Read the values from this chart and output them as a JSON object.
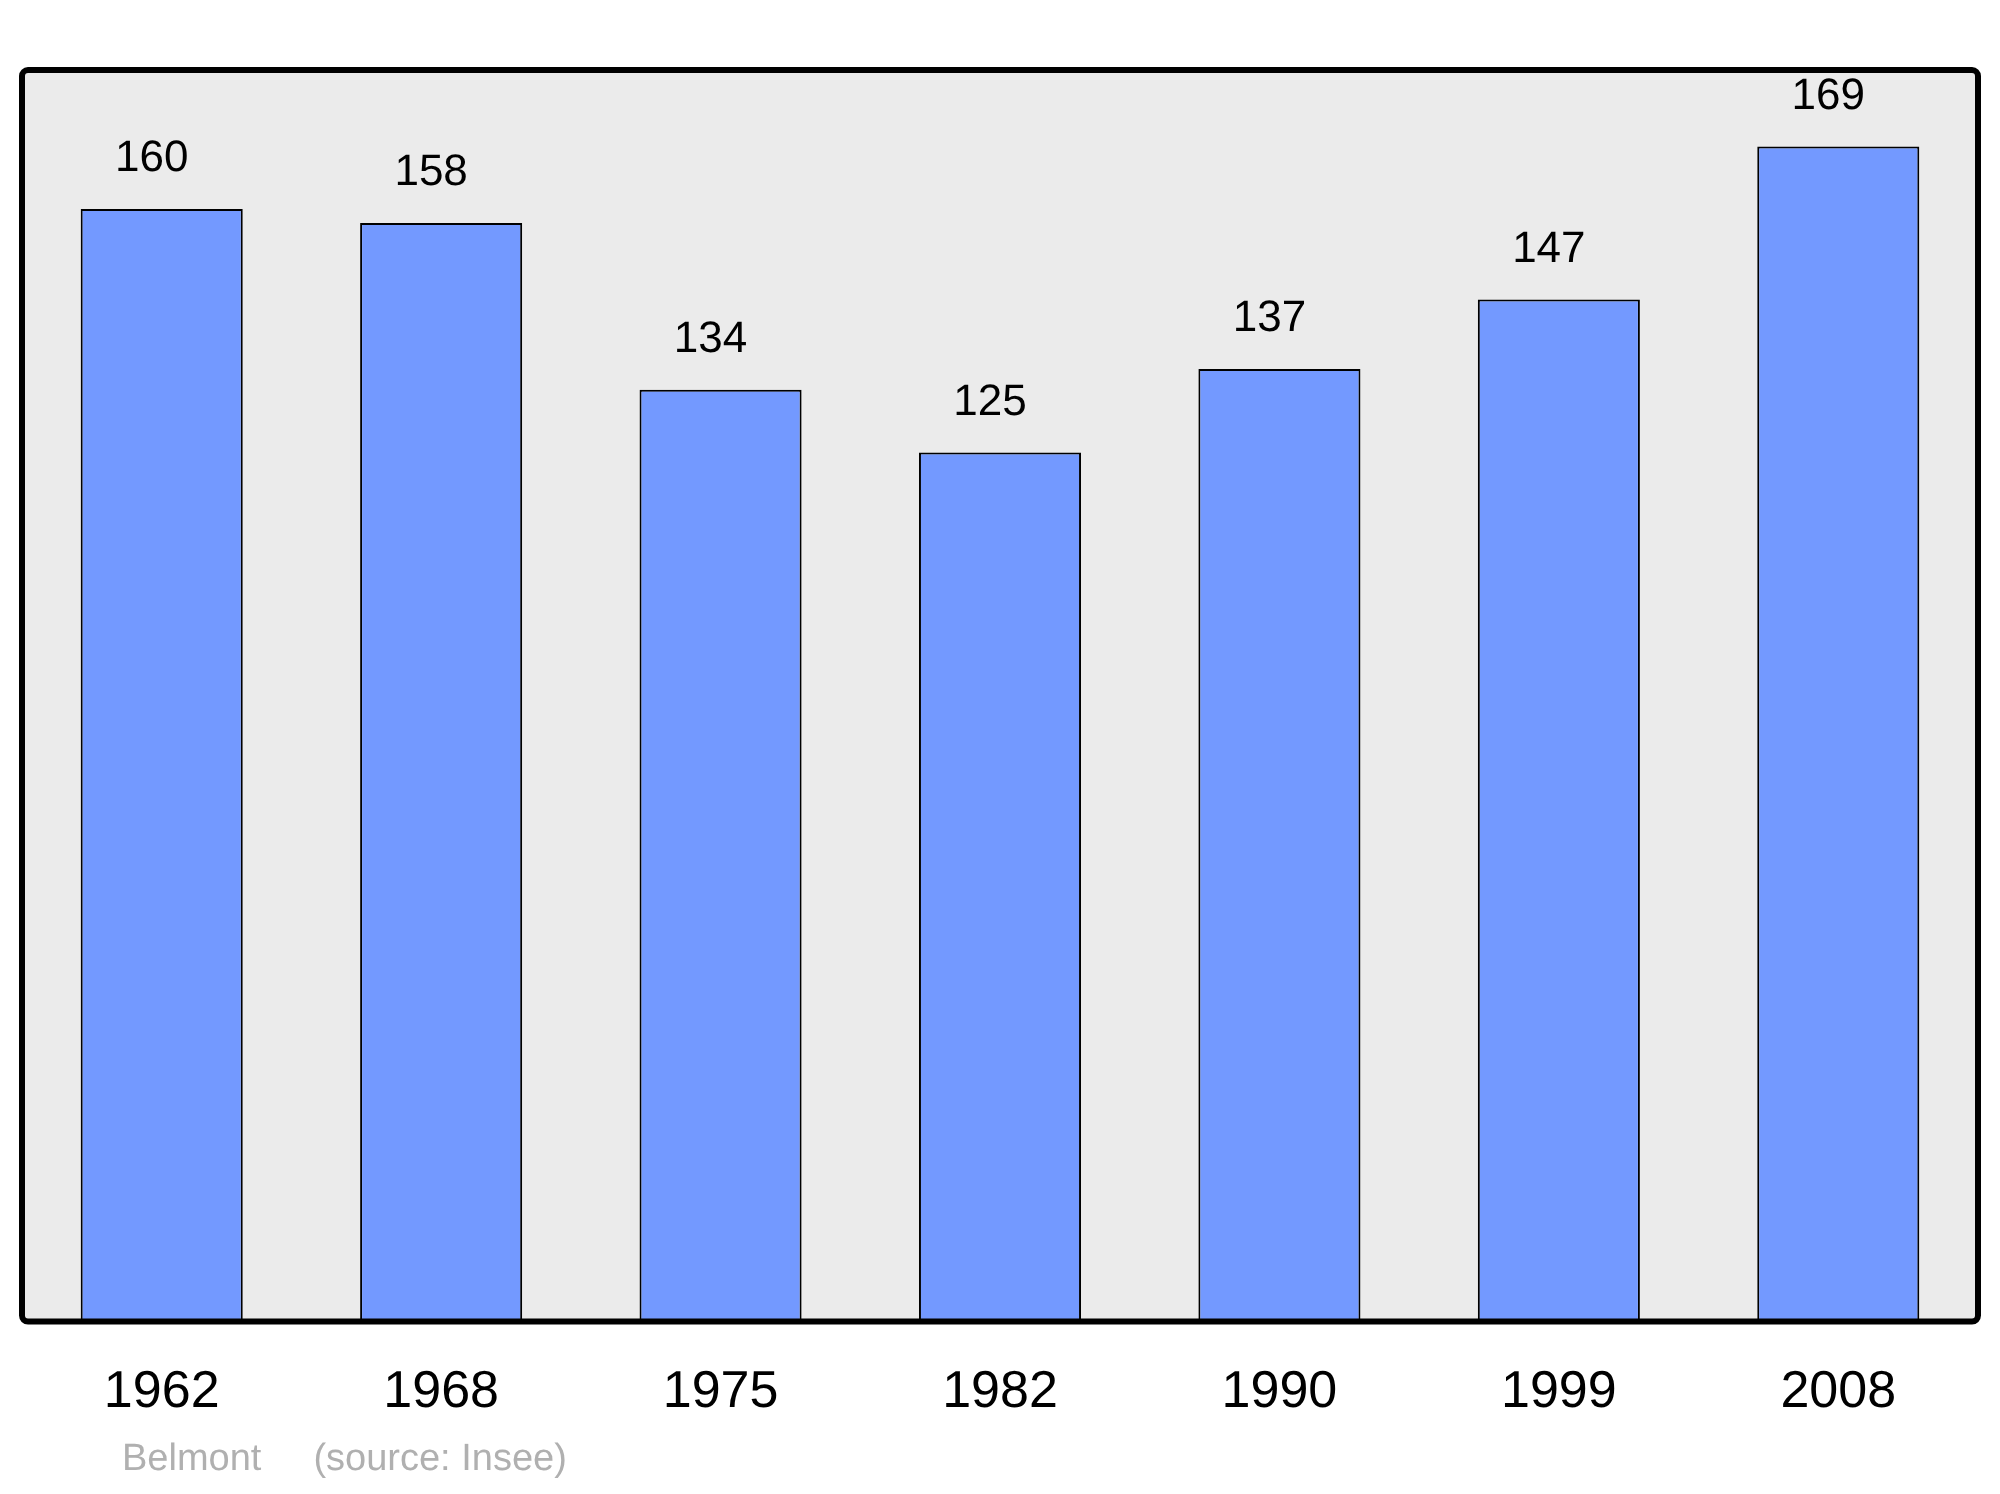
{
  "chart_data": {
    "type": "bar",
    "categories": [
      "1962",
      "1968",
      "1975",
      "1982",
      "1990",
      "1999",
      "2008"
    ],
    "values": [
      160,
      158,
      134,
      125,
      137,
      147,
      169
    ],
    "color": "#7399ff",
    "data_labels": true,
    "grid": false,
    "legend": false,
    "annotations": [
      "Belmont",
      "(source: Insee)"
    ]
  }
}
